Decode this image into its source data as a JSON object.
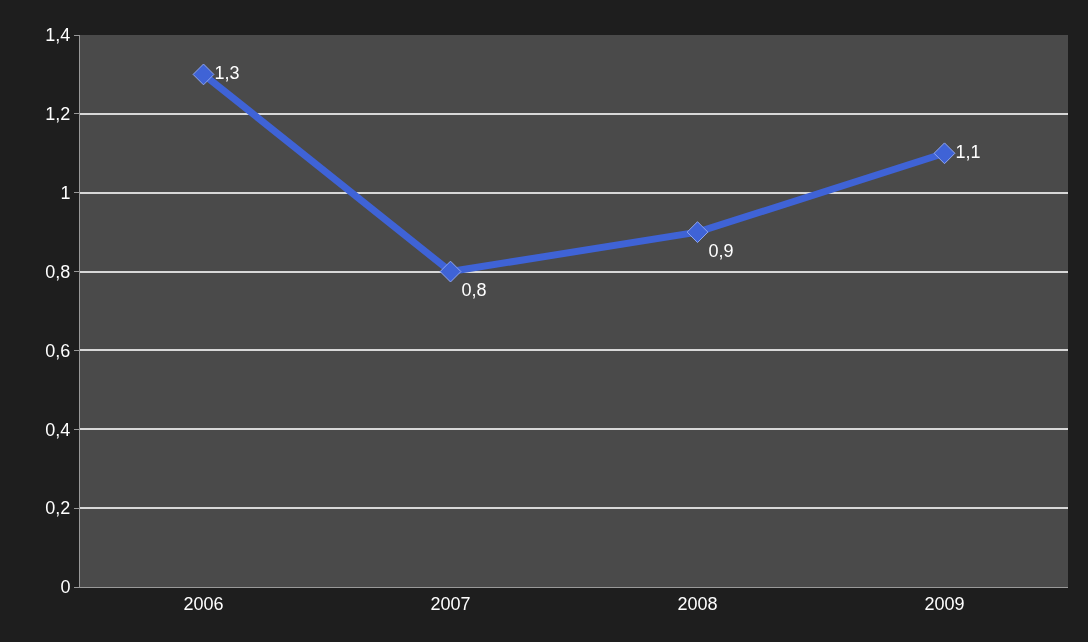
{
  "chart_data": {
    "type": "line",
    "categories": [
      "2006",
      "2007",
      "2008",
      "2009"
    ],
    "series": [
      {
        "color": "#3f63d6",
        "values": [
          1.3,
          0.8,
          0.9,
          1.1
        ],
        "value_labels": [
          "1,3",
          "0,8",
          "0,9",
          "1,1"
        ]
      }
    ],
    "ylim": [
      0,
      1.4
    ],
    "yticks": [
      0,
      {
        "value": 0.2,
        "label": "0,2"
      },
      {
        "value": 0.4,
        "label": "0,4"
      },
      {
        "value": 0.6,
        "label": "0,6"
      },
      {
        "value": 0.8,
        "label": "0,8"
      },
      1,
      {
        "value": 1.2,
        "label": "1,2"
      },
      {
        "value": 1.4,
        "label": "1,4"
      }
    ],
    "grid": "y",
    "marker": "diamond",
    "line_style": "solid"
  }
}
